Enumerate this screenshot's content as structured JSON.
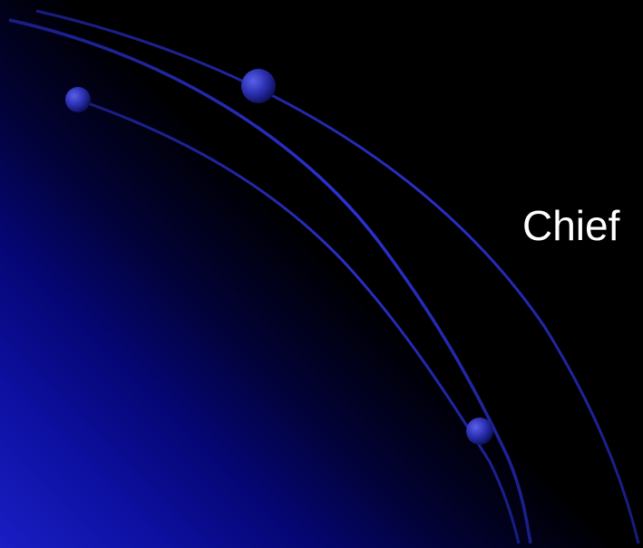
{
  "slide": {
    "title": "Chief",
    "background_colors": [
      "#1a1ec4",
      "#050673",
      "#000000"
    ],
    "arc_color": "#2a30d8",
    "bead_color": "#2a2fb0"
  }
}
